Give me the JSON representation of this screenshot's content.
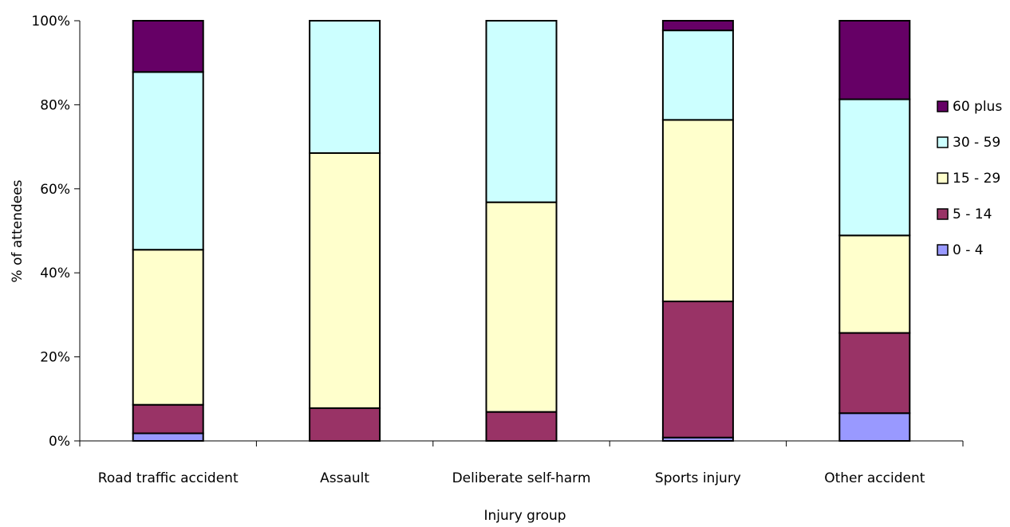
{
  "chart_data": {
    "type": "bar",
    "stacked": true,
    "percent_stacked": true,
    "categories": [
      "Road traffic accident",
      "Assault",
      "Deliberate self-harm",
      "Sports injury",
      "Other accident"
    ],
    "series": [
      {
        "name": "0 - 4",
        "color": "#9999FF",
        "values": [
          1.8,
          0,
          0,
          0.8,
          6.6
        ]
      },
      {
        "name": "5 - 14",
        "color": "#993366",
        "values": [
          6.8,
          7.8,
          6.9,
          32.4,
          19.1
        ]
      },
      {
        "name": "15 - 29",
        "color": "#FFFFCC",
        "values": [
          36.9,
          60.7,
          49.9,
          43.2,
          23.2
        ]
      },
      {
        "name": "30 - 59",
        "color": "#CCFFFF",
        "values": [
          42.3,
          31.5,
          43.2,
          21.3,
          32.4
        ]
      },
      {
        "name": "60 plus",
        "color": "#660066",
        "values": [
          12.2,
          0,
          0,
          2.3,
          18.7
        ]
      }
    ],
    "yticks": [
      "0%",
      "20%",
      "40%",
      "60%",
      "80%",
      "100%"
    ],
    "ylim": [
      0,
      100
    ],
    "xlabel": "Injury group",
    "ylabel": "% of attendees",
    "title": "",
    "grid": false,
    "legend_position": "right",
    "legend_order": [
      "60 plus",
      "30 - 59",
      "15 - 29",
      "5 - 14",
      "0 - 4"
    ]
  }
}
